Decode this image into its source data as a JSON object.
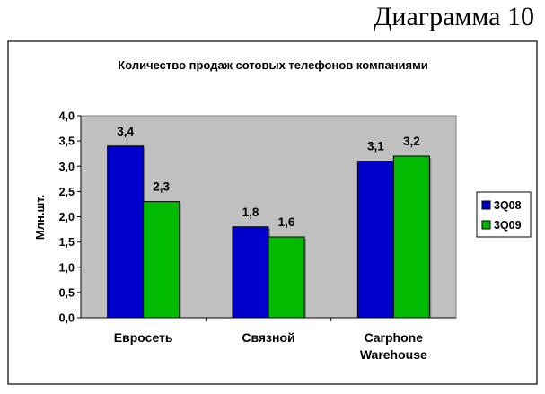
{
  "page_label": "Диаграмма 10",
  "chart_data": {
    "type": "bar",
    "title": "Количество продаж сотовых телефонов компаниями",
    "ylabel": "Млн.шт.",
    "xlabel": "",
    "categories": [
      "Евросеть",
      "Связной",
      "Carphone Warehouse"
    ],
    "series": [
      {
        "name": "3Q08",
        "values": [
          3.4,
          1.8,
          3.1
        ],
        "labels": [
          "3,4",
          "1,8",
          "3,1"
        ],
        "color": "#0000cc"
      },
      {
        "name": "3Q09",
        "values": [
          2.3,
          1.6,
          3.2
        ],
        "labels": [
          "2,3",
          "1,6",
          "3,2"
        ],
        "color": "#00bb00"
      }
    ],
    "ylim": [
      0,
      4
    ],
    "yticks": [
      "0,0",
      "0,5",
      "1,0",
      "1,5",
      "2,0",
      "2,5",
      "3,0",
      "3,5",
      "4,0"
    ],
    "grid": false,
    "legend": "right",
    "plot_background": "#c0c0c0"
  }
}
